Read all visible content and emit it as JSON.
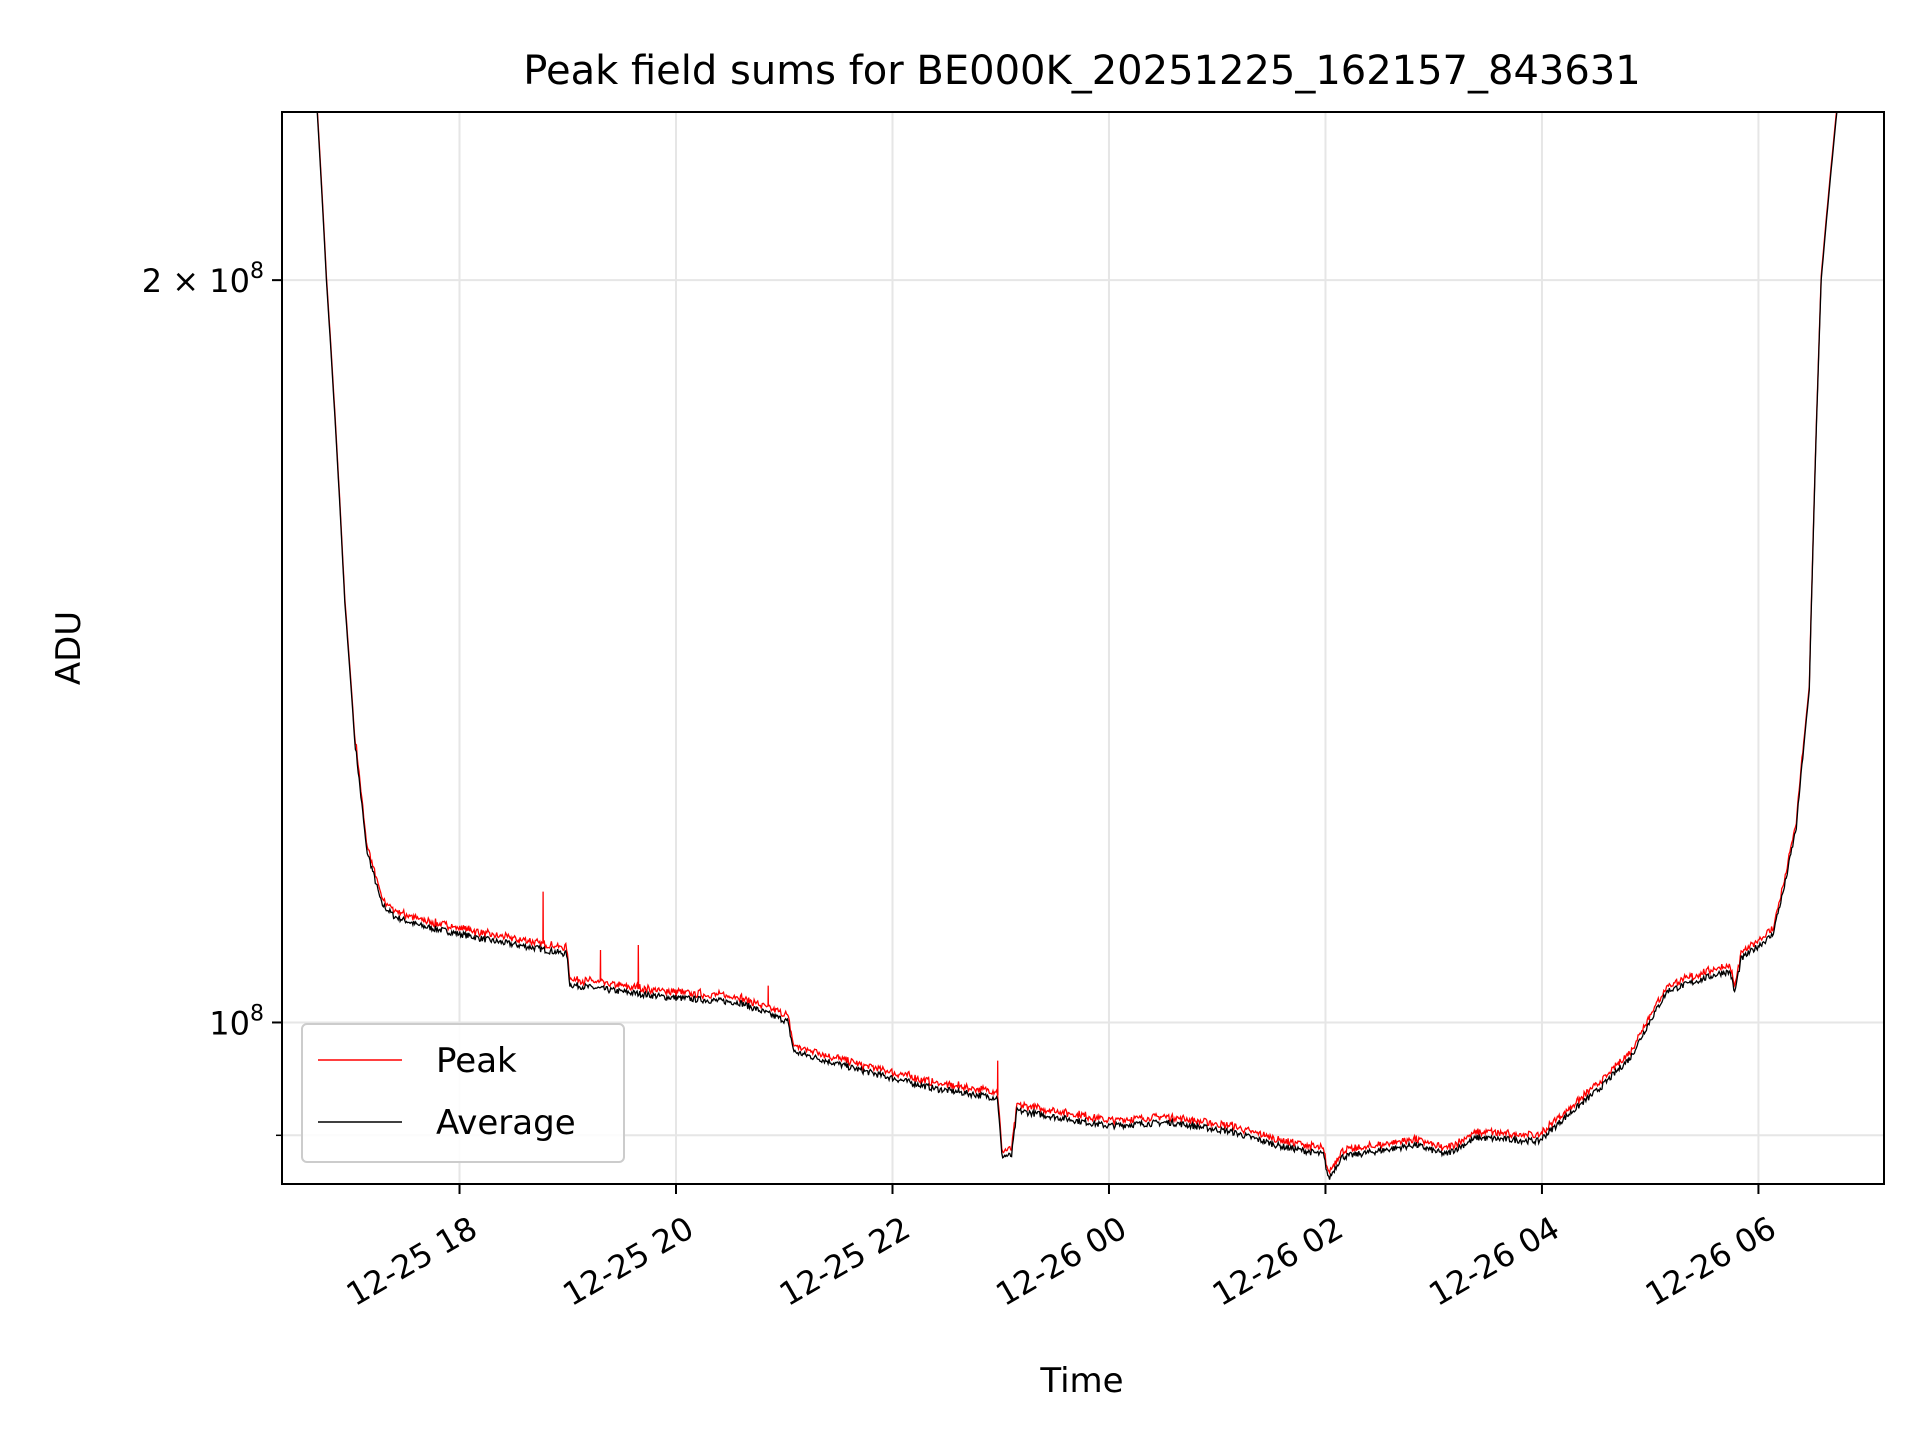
{
  "chart_data": {
    "type": "line",
    "title": "Peak field sums for BE000K_20251225_162157_843631",
    "xlabel": "Time",
    "ylabel": "ADU",
    "yscale": "log",
    "x_unit": "hours since 2025-12-25 00:00",
    "xlim": [
      16.36,
      31.16
    ],
    "ylim": [
      86000000,
      234000000
    ],
    "xticks": [
      {
        "value": 18,
        "label": "12-25 18"
      },
      {
        "value": 20,
        "label": "12-25 20"
      },
      {
        "value": 22,
        "label": "12-25 22"
      },
      {
        "value": 24,
        "label": "12-26 00"
      },
      {
        "value": 26,
        "label": "12-26 02"
      },
      {
        "value": 28,
        "label": "12-26 04"
      },
      {
        "value": 30,
        "label": "12-26 06"
      }
    ],
    "yticks": [
      {
        "value": 200000000,
        "label": "2 × 10",
        "exp": "8"
      },
      {
        "value": 100000000,
        "label": "10",
        "exp": "8"
      }
    ],
    "yminor": [
      90000000
    ],
    "grid": true,
    "legend_position": "lower-left",
    "series": [
      {
        "name": "Peak",
        "color": "#ff0000",
        "ratio_to_average": 1.004,
        "spikes": [
          [
            18.77,
            113000000
          ],
          [
            19.3,
            107000000
          ],
          [
            19.65,
            107500000
          ],
          [
            20.85,
            103500000
          ],
          [
            22.97,
            96500000
          ]
        ]
      },
      {
        "name": "Average",
        "color": "#000000",
        "points": [
          [
            16.36,
            240000000
          ],
          [
            16.67,
            240000000
          ],
          [
            16.77,
            200000000
          ],
          [
            16.94,
            148000000
          ],
          [
            17.03,
            130400000
          ],
          [
            17.14,
            117600000
          ],
          [
            17.28,
            111700000
          ],
          [
            17.4,
            110400000
          ],
          [
            17.62,
            109500000
          ],
          [
            18.31,
            107900000
          ],
          [
            18.65,
            107300000
          ],
          [
            18.99,
            106600000
          ],
          [
            19.02,
            103600000
          ],
          [
            19.44,
            103000000
          ],
          [
            19.9,
            102400000
          ],
          [
            20.58,
            101900000
          ],
          [
            21.03,
            100100000
          ],
          [
            21.09,
            97300000
          ],
          [
            21.72,
            95600000
          ],
          [
            22.4,
            94000000
          ],
          [
            22.97,
            93200000
          ],
          [
            23.01,
            88300000
          ],
          [
            23.1,
            88300000
          ],
          [
            23.15,
            92100000
          ],
          [
            23.99,
            90800000
          ],
          [
            24.56,
            91100000
          ],
          [
            25.13,
            90300000
          ],
          [
            25.58,
            89100000
          ],
          [
            25.98,
            88400000
          ],
          [
            26.03,
            86400000
          ],
          [
            26.15,
            88200000
          ],
          [
            26.83,
            89200000
          ],
          [
            27.11,
            88400000
          ],
          [
            27.4,
            89800000
          ],
          [
            27.97,
            89500000
          ],
          [
            28.2,
            91400000
          ],
          [
            28.53,
            94000000
          ],
          [
            28.82,
            96800000
          ],
          [
            28.99,
            100000000
          ],
          [
            29.16,
            103000000
          ],
          [
            29.67,
            104800000
          ],
          [
            29.74,
            104800000
          ],
          [
            29.78,
            102800000
          ],
          [
            29.84,
            106100000
          ],
          [
            30.13,
            108500000
          ],
          [
            30.24,
            113500000
          ],
          [
            30.35,
            120000000
          ],
          [
            30.47,
            136400000
          ],
          [
            30.58,
            200000000
          ],
          [
            30.75,
            240000000
          ],
          [
            31.16,
            240000000
          ]
        ]
      }
    ]
  }
}
